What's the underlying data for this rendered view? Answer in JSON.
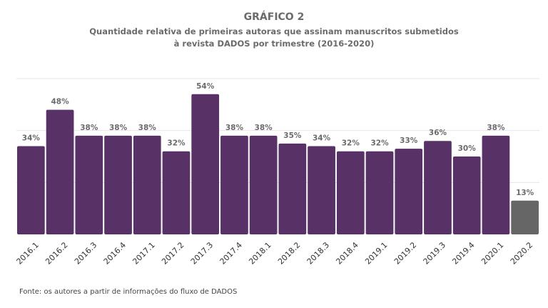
{
  "chart_data": {
    "type": "bar",
    "title": "GRÁFICO 2",
    "subtitle_line1": "Quantidade relativa de primeiras autoras que assinam manuscritos submetidos",
    "subtitle_line2": "à revista DADOS por trimestre (2016-2020)",
    "xlabel": "",
    "ylabel": "",
    "ylim": [
      0,
      60
    ],
    "gridlines": [
      20,
      40,
      60
    ],
    "grid": true,
    "legend": "none",
    "value_suffix": "%",
    "categories": [
      "2016.1",
      "2016.2",
      "2016.3",
      "2016.4",
      "2017.1",
      "2017.2",
      "2017.3",
      "2017.4",
      "2018.1",
      "2018.2",
      "2018.3",
      "2018.4",
      "2019.1",
      "2019.2",
      "2019.3",
      "2019.4",
      "2020.1",
      "2020.2"
    ],
    "values": [
      34,
      48,
      38,
      38,
      38,
      32,
      54,
      38,
      38,
      35,
      34,
      32,
      32,
      33,
      36,
      30,
      38,
      13
    ],
    "data_labels": [
      "34%",
      "48%",
      "38%",
      "38%",
      "38%",
      "32%",
      "54%",
      "38%",
      "38%",
      "35%",
      "34%",
      "32%",
      "32%",
      "33%",
      "36%",
      "30%",
      "38%",
      "13%"
    ],
    "colors": {
      "default": "#583266",
      "highlight": "#666666",
      "highlight_index": 17,
      "grid": "#e6e6e6",
      "label": "#6b6b6b"
    }
  },
  "source_note": "Fonte: os autores a partir de informações do fluxo de DADOS"
}
